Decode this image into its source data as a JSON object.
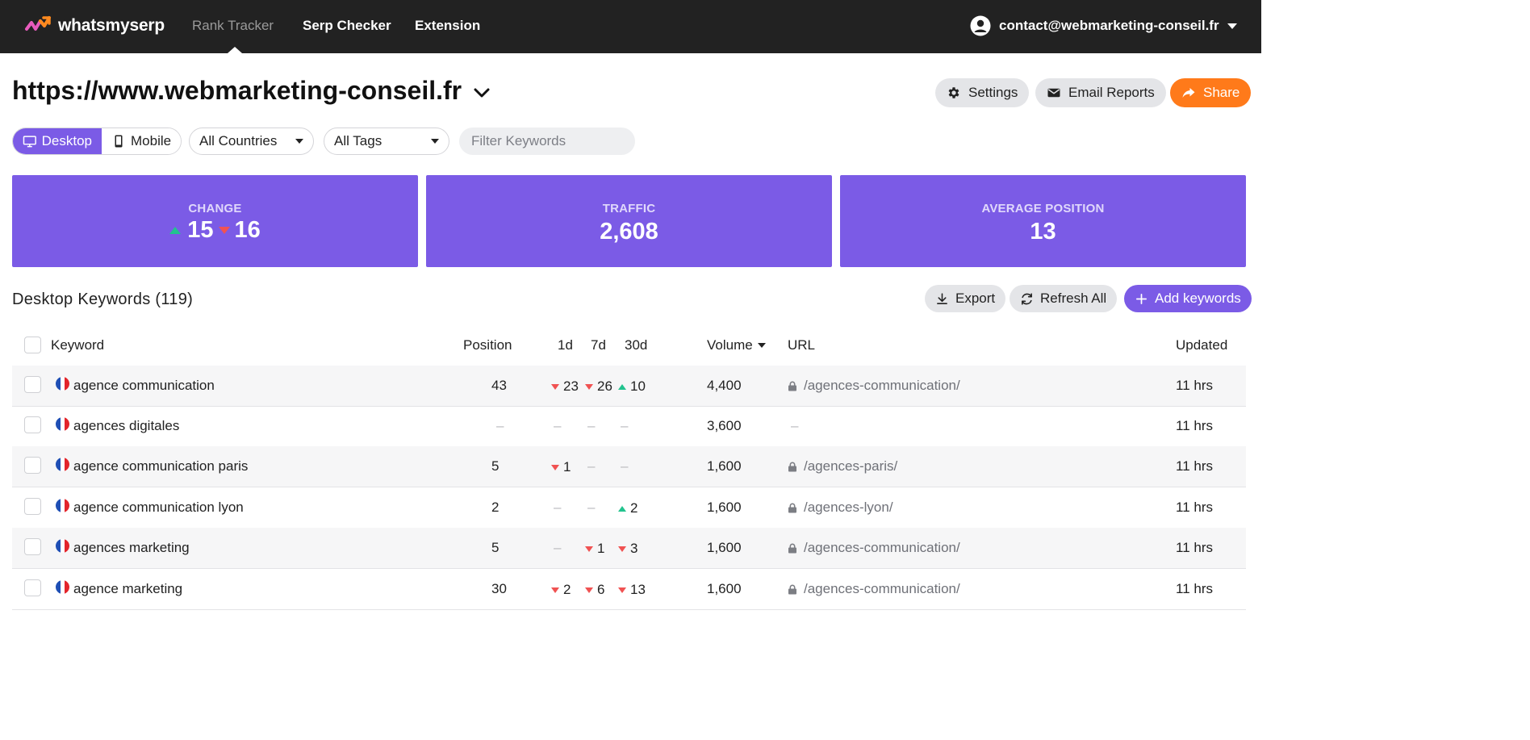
{
  "nav": {
    "brand": "whatsmyserp",
    "items": [
      "Rank Tracker",
      "Serp Checker",
      "Extension"
    ],
    "account_email": "contact@webmarketing-conseil.fr"
  },
  "site": {
    "title": "https://www.webmarketing-conseil.fr",
    "settings_label": "Settings",
    "email_reports_label": "Email Reports",
    "share_label": "Share"
  },
  "filters": {
    "desktop_label": "Desktop",
    "mobile_label": "Mobile",
    "countries_value": "All Countries",
    "tags_value": "All Tags",
    "keywords_placeholder": "Filter Keywords"
  },
  "stats": {
    "change_label": "CHANGE",
    "change_up": "15",
    "change_down": "16",
    "traffic_label": "TRAFFIC",
    "traffic_value": "2,608",
    "avg_label": "AVERAGE POSITION",
    "avg_value": "13"
  },
  "section": {
    "title": "Desktop Keywords (119)",
    "export_label": "Export",
    "refresh_label": "Refresh All",
    "add_label": "Add keywords"
  },
  "table": {
    "headers": {
      "keyword": "Keyword",
      "position": "Position",
      "d1": "1d",
      "d7": "7d",
      "d30": "30d",
      "volume": "Volume",
      "url": "URL",
      "updated": "Updated"
    },
    "rows": [
      {
        "keyword": "agence communication",
        "position": "43",
        "d1": {
          "dir": "down",
          "v": "23"
        },
        "d7": {
          "dir": "down",
          "v": "26"
        },
        "d30": {
          "dir": "up",
          "v": "10"
        },
        "volume": "4,400",
        "url": "/agences-communication/",
        "updated": "11 hrs"
      },
      {
        "keyword": "agences digitales",
        "position": "–",
        "d1": {
          "dir": "none",
          "v": "–"
        },
        "d7": {
          "dir": "none",
          "v": "–"
        },
        "d30": {
          "dir": "none",
          "v": "–"
        },
        "volume": "3,600",
        "url": "–",
        "updated": "11 hrs"
      },
      {
        "keyword": "agence communication paris",
        "position": "5",
        "d1": {
          "dir": "down",
          "v": "1"
        },
        "d7": {
          "dir": "none",
          "v": "–"
        },
        "d30": {
          "dir": "none",
          "v": "–"
        },
        "volume": "1,600",
        "url": "/agences-paris/",
        "updated": "11 hrs"
      },
      {
        "keyword": "agence communication lyon",
        "position": "2",
        "d1": {
          "dir": "none",
          "v": "–"
        },
        "d7": {
          "dir": "none",
          "v": "–"
        },
        "d30": {
          "dir": "up",
          "v": "2"
        },
        "volume": "1,600",
        "url": "/agences-lyon/",
        "updated": "11 hrs"
      },
      {
        "keyword": "agences marketing",
        "position": "5",
        "d1": {
          "dir": "none",
          "v": "–"
        },
        "d7": {
          "dir": "down",
          "v": "1"
        },
        "d30": {
          "dir": "down",
          "v": "3"
        },
        "volume": "1,600",
        "url": "/agences-communication/",
        "updated": "11 hrs"
      },
      {
        "keyword": "agence marketing",
        "position": "30",
        "d1": {
          "dir": "down",
          "v": "2"
        },
        "d7": {
          "dir": "down",
          "v": "6"
        },
        "d30": {
          "dir": "down",
          "v": "13"
        },
        "volume": "1,600",
        "url": "/agences-communication/",
        "updated": "11 hrs"
      }
    ]
  },
  "colors": {
    "accent": "#7b5be6",
    "share": "#ff7a1a",
    "up": "#22c38e",
    "down": "#f05252",
    "topbar": "#222222"
  }
}
